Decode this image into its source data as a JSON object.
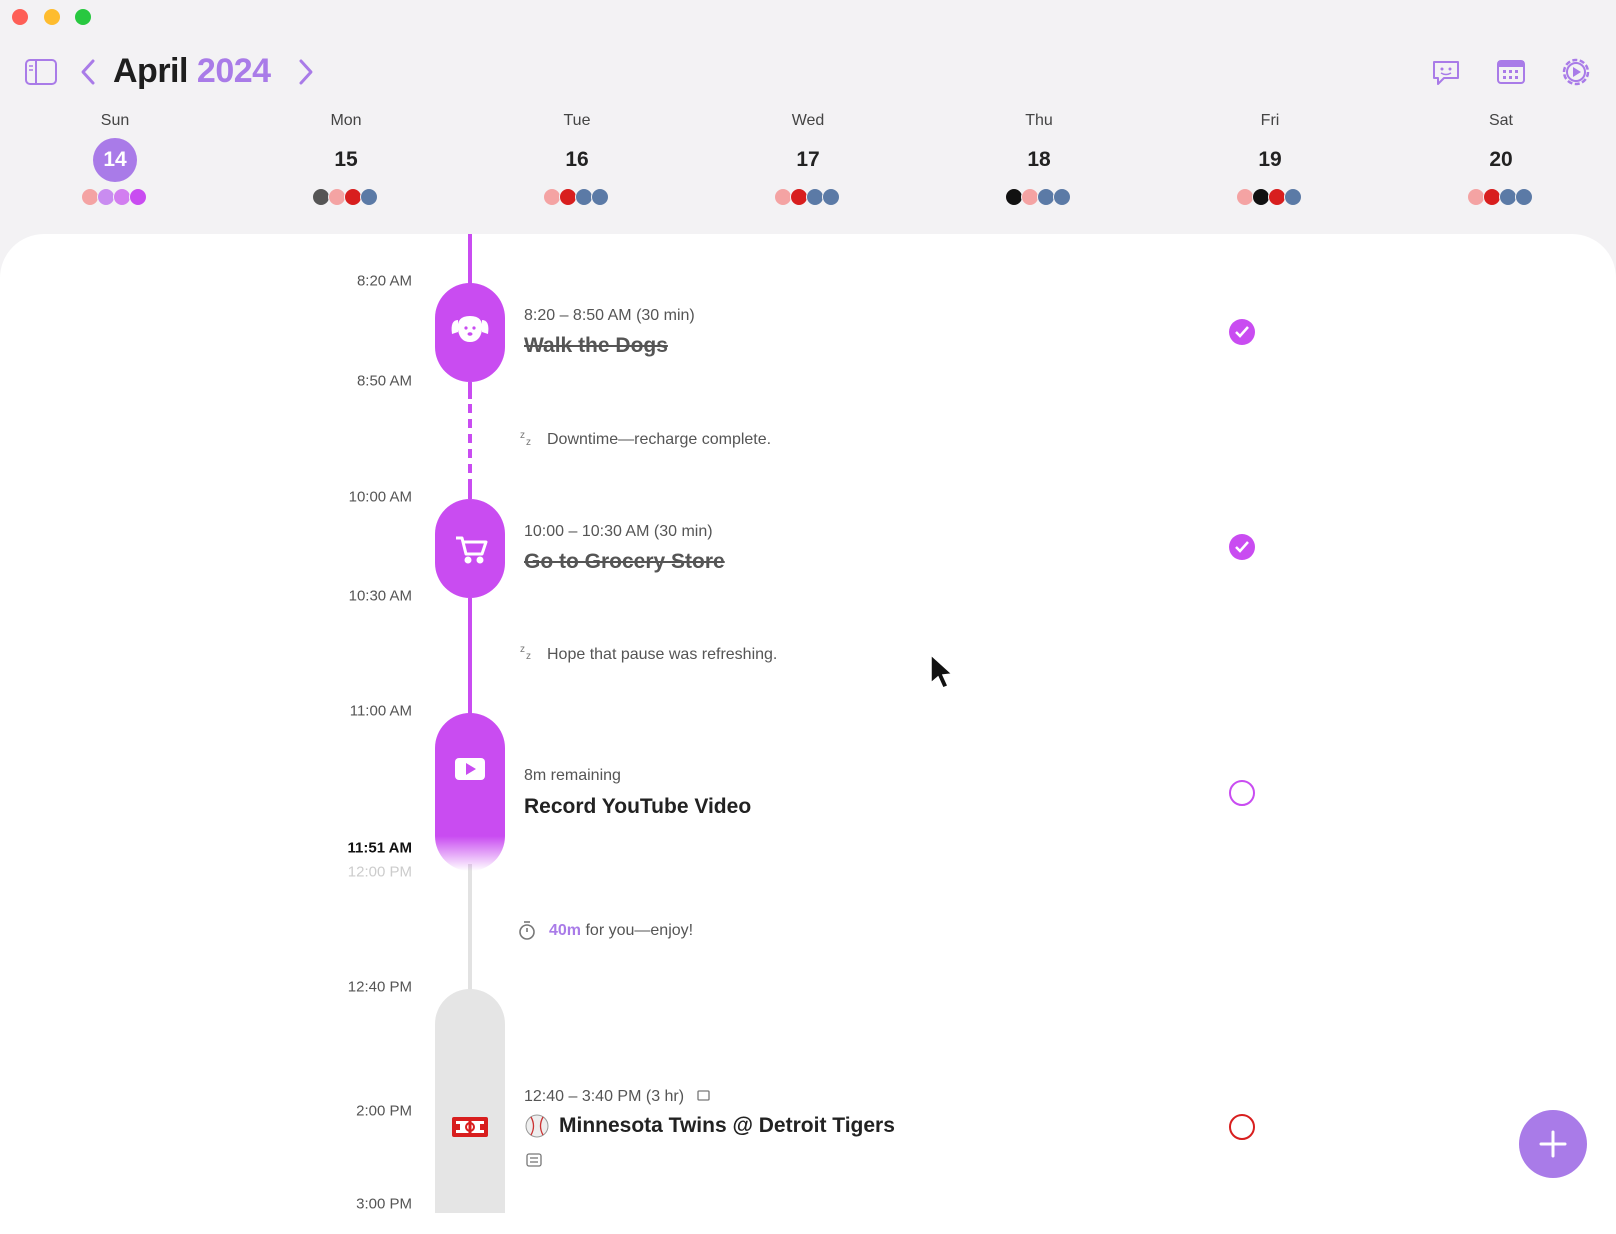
{
  "header": {
    "month": "April",
    "year": "2024"
  },
  "days": [
    {
      "weekday": "Sun",
      "date": 14
    },
    {
      "weekday": "Mon",
      "date": 15
    },
    {
      "weekday": "Tue",
      "date": 16
    },
    {
      "weekday": "Wed",
      "date": 17
    },
    {
      "weekday": "Thu",
      "date": 18
    },
    {
      "weekday": "Fri",
      "date": 19
    },
    {
      "weekday": "Sat",
      "date": 20
    }
  ],
  "time_labels": [
    "8:20 AM",
    "8:50 AM",
    "10:00 AM",
    "10:30 AM",
    "11:00 AM",
    "11:51 AM",
    "12:00 PM",
    "12:40 PM",
    "2:00 PM",
    "3:00 PM"
  ],
  "tasks": [
    {
      "time": "8:20 – 8:50 AM (30 min)",
      "title": "Walk the Dogs"
    },
    {
      "time": "10:00 – 10:30 AM (30 min)",
      "title": "Go to Grocery Store"
    },
    {
      "time": "8m remaining",
      "title": "Record YouTube Video"
    },
    {
      "time": "12:40 – 3:40 PM (3 hr)",
      "title": "Minnesota Twins @ Detroit Tigers"
    }
  ],
  "breaks": [
    "Downtime—recharge complete.",
    "Hope that pause was refreshing."
  ],
  "free_time": {
    "amount": "40m",
    "text": "for you—enjoy!"
  }
}
